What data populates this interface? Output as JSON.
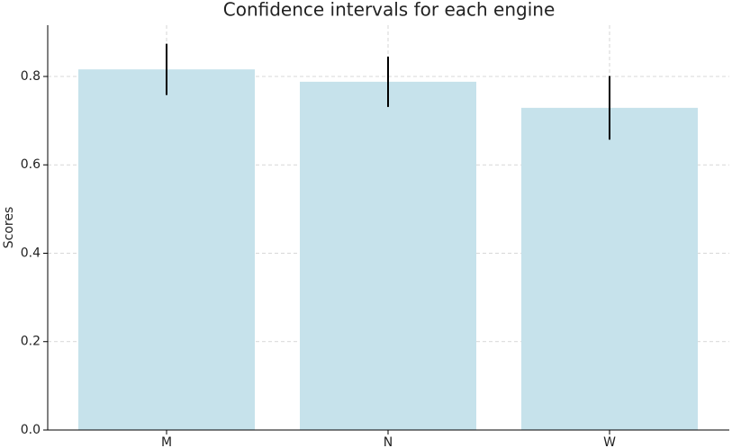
{
  "chart_data": {
    "type": "bar",
    "title": "Confidence intervals for each engine",
    "y_label": "Scores",
    "categories": [
      "M",
      "N",
      "W"
    ],
    "values": [
      0.816,
      0.788,
      0.729
    ],
    "errors": [
      0.058,
      0.057,
      0.072
    ],
    "color": "#c6e2eb",
    "error_color": "#000000",
    "ylim": [
      0,
      0.916
    ],
    "yticks": [
      {
        "value": 0,
        "label": "0.0"
      },
      0.2,
      0.4,
      0.6,
      0.8
    ],
    "grid": true
  }
}
